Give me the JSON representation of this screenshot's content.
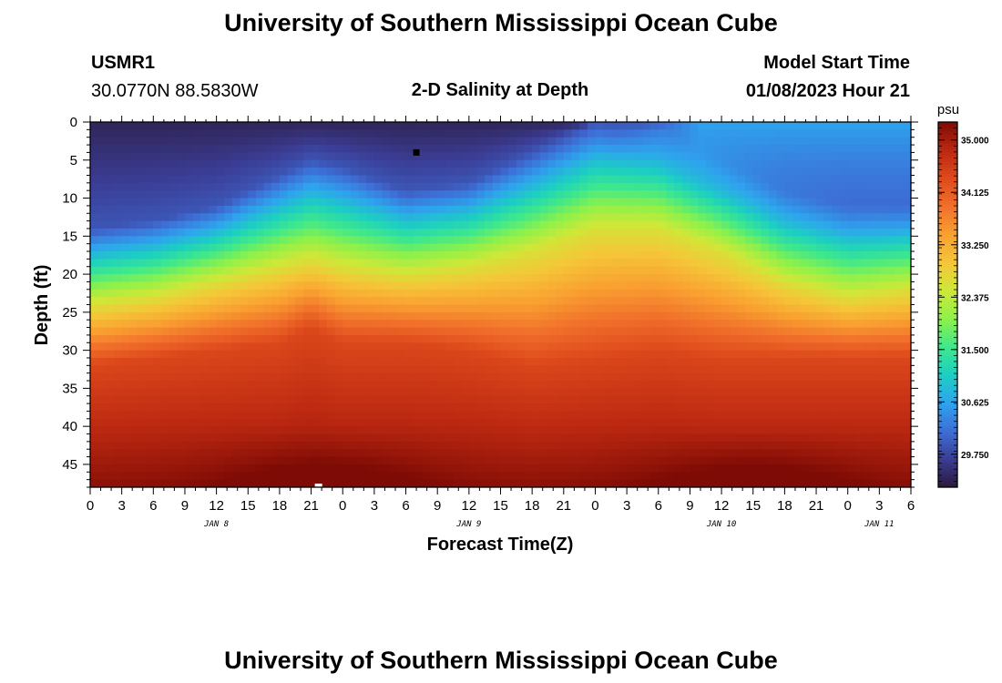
{
  "header": {
    "title": "University of Southern Mississippi Ocean Cube",
    "station_id": "USMR1",
    "station_coords": "30.0770N  88.5830W",
    "subtitle": "2-D Salinity at Depth",
    "model_start_label": "Model Start Time",
    "model_start_value": "01/08/2023 Hour 21"
  },
  "footer": {
    "title": "University of Southern Mississippi Ocean Cube"
  },
  "chart_data": {
    "type": "heatmap",
    "title": "2-D Salinity at Depth",
    "xlabel": "Forecast Time(Z)",
    "ylabel": "Depth (ft)",
    "x_range_hours": [
      0,
      78
    ],
    "x_tick_step_hours": 3,
    "x_tick_labels": [
      "0",
      "3",
      "6",
      "9",
      "12",
      "15",
      "18",
      "21",
      "0",
      "3",
      "6",
      "9",
      "12",
      "15",
      "18",
      "21",
      "0",
      "3",
      "6",
      "9",
      "12",
      "15",
      "18",
      "21",
      "0",
      "3",
      "6"
    ],
    "date_labels": [
      {
        "text": "JAN 8",
        "hour": 12
      },
      {
        "text": "JAN 9",
        "hour": 36
      },
      {
        "text": "JAN 10",
        "hour": 60
      },
      {
        "text": "JAN 11",
        "hour": 75
      }
    ],
    "y_range_ft": [
      0,
      48
    ],
    "y_tick_labels": [
      "0",
      "5",
      "10",
      "15",
      "20",
      "25",
      "30",
      "35",
      "40",
      "45"
    ],
    "colorbar": {
      "unit": "psu",
      "min": 29.2,
      "max": 35.3,
      "tick_labels": [
        "35.000",
        "34.125",
        "33.250",
        "32.375",
        "31.500",
        "30.625",
        "29.750"
      ]
    },
    "colors": [
      "#2b1a3c",
      "#3b3d95",
      "#3d6fd6",
      "#2ea4ee",
      "#1ccfc2",
      "#3fe88b",
      "#8ef14a",
      "#cee838",
      "#f5c638",
      "#f9a031",
      "#f1702b",
      "#de4a1c",
      "#bb2811",
      "#7e0b05"
    ],
    "salinity_profiles": [
      {
        "hour": 0,
        "z_top": 14,
        "z_mid": 24,
        "z_bot": 32
      },
      {
        "hour": 6,
        "z_top": 13,
        "z_mid": 23,
        "z_bot": 31
      },
      {
        "hour": 12,
        "z_top": 11,
        "z_mid": 21,
        "z_bot": 30
      },
      {
        "hour": 18,
        "z_top": 7,
        "z_mid": 19,
        "z_bot": 29
      },
      {
        "hour": 21,
        "z_top": 5,
        "z_mid": 18,
        "z_bot": 27
      },
      {
        "hour": 24,
        "z_top": 6,
        "z_mid": 19,
        "z_bot": 29
      },
      {
        "hour": 30,
        "z_top": 9,
        "z_mid": 20,
        "z_bot": 29
      },
      {
        "hour": 36,
        "z_top": 8,
        "z_mid": 19,
        "z_bot": 30
      },
      {
        "hour": 42,
        "z_top": 4,
        "z_mid": 17,
        "z_bot": 32
      },
      {
        "hour": 48,
        "z_top": 0,
        "z_mid": 14,
        "z_bot": 31
      },
      {
        "hour": 54,
        "z_top": 1,
        "z_mid": 14,
        "z_bot": 30
      },
      {
        "hour": 60,
        "z_top": 5,
        "z_mid": 17,
        "z_bot": 31
      },
      {
        "hour": 66,
        "z_top": 9,
        "z_mid": 21,
        "z_bot": 31
      },
      {
        "hour": 72,
        "z_top": 11,
        "z_mid": 23,
        "z_bot": 31
      },
      {
        "hour": 78,
        "z_top": 11,
        "z_mid": 22,
        "z_bot": 31
      }
    ],
    "markers": [
      {
        "label": "min",
        "hour": 31,
        "depth": 4,
        "color": "#000000"
      },
      {
        "label": "max",
        "hour": 21.7,
        "depth": 48,
        "color": "#ffffff"
      }
    ]
  }
}
